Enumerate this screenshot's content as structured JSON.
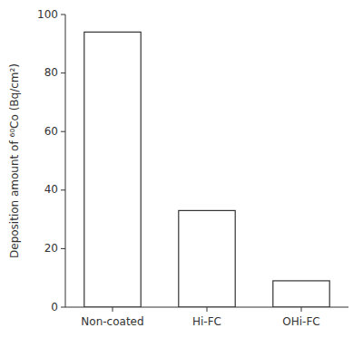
{
  "chart_data": {
    "type": "bar",
    "categories": [
      "Non-coated",
      "Hi-FC",
      "OHi-FC"
    ],
    "values": [
      94,
      33,
      9
    ],
    "color": "white",
    "ylabel": "Deposition amount of ⁶⁰Co (Bq/cm²)",
    "ylim": [
      0,
      100
    ],
    "yticks": [
      0,
      20,
      40,
      60,
      80,
      100
    ],
    "grid": false
  }
}
